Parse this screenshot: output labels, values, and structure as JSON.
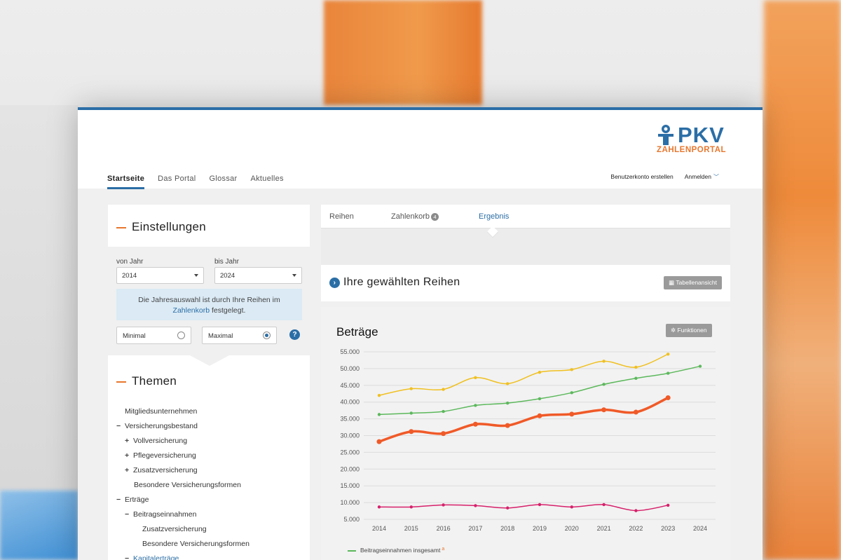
{
  "header": {
    "logo_top": "PKV",
    "logo_bottom": "ZAHLENPORTAL",
    "nav": [
      "Startseite",
      "Das Portal",
      "Glossar",
      "Aktuelles"
    ],
    "create_account": "Benutzerkonto erstellen",
    "login": "Anmelden"
  },
  "settings": {
    "title": "Einstellungen",
    "from_label": "von Jahr",
    "from_value": "2014",
    "to_label": "bis Jahr",
    "to_value": "2024",
    "info_text": "Die Jahresauswahl ist durch Ihre Reihen im",
    "info_link": "Zahlenkorb",
    "info_tail": "festgelegt.",
    "minimal_label": "Minimal",
    "maximal_label": "Maximal",
    "help": "?"
  },
  "themes": {
    "title": "Themen",
    "items": [
      {
        "label": "Mitgliedsunternehmen",
        "level": 0,
        "sign": ""
      },
      {
        "label": "Versicherungsbestand",
        "level": 0,
        "sign": "−"
      },
      {
        "label": "Vollversicherung",
        "level": 1,
        "sign": "+"
      },
      {
        "label": "Pflegeversicherung",
        "level": 1,
        "sign": "+"
      },
      {
        "label": "Zusatzversicherung",
        "level": 1,
        "sign": "+"
      },
      {
        "label": "Besondere Versicherungsformen",
        "level": 1,
        "sign": ""
      },
      {
        "label": "Erträge",
        "level": 0,
        "sign": "−"
      },
      {
        "label": "Beitragseinnahmen",
        "level": 1,
        "sign": "−"
      },
      {
        "label": "Zusatzversicherung",
        "level": 2,
        "sign": ""
      },
      {
        "label": "Besondere Versicherungsformen",
        "level": 2,
        "sign": ""
      },
      {
        "label": "Kapitalerträge",
        "level": 1,
        "sign": "−",
        "highlight": true
      }
    ]
  },
  "tabs": {
    "reihen": "Reihen",
    "zahlenkorb": "Zahlenkorb",
    "zahlenkorb_count": "4",
    "ergebnis": "Ergebnis"
  },
  "series": {
    "title": "Ihre gewählten Reihen",
    "table_button": "Tabellenansicht"
  },
  "chart_data": {
    "type": "line",
    "title": "Beträge",
    "functions_button": "Funktionen",
    "x": [
      "2014",
      "2015",
      "2016",
      "2017",
      "2018",
      "2019",
      "2020",
      "2021",
      "2022",
      "2023",
      "2024"
    ],
    "y_ticks": [
      "55.000",
      "50.000",
      "45.000",
      "40.000",
      "35.000",
      "30.000",
      "25.000",
      "20.000",
      "15.000",
      "10.000",
      "5.000"
    ],
    "ylim": [
      5000,
      55000
    ],
    "grid": true,
    "series": [
      {
        "color": "#f0c020",
        "width": 1.5,
        "values": [
          42000,
          44000,
          43800,
          47300,
          45500,
          48900,
          49700,
          52200,
          50400,
          54300,
          null
        ]
      },
      {
        "name": "Beitragseinnahmen insgesamt",
        "color": "#5cb85c",
        "width": 1.5,
        "values": [
          36300,
          36700,
          37200,
          39000,
          39700,
          41000,
          42800,
          45300,
          47100,
          48600,
          50700
        ]
      },
      {
        "color": "#f05a28",
        "width": 3.5,
        "values": [
          28200,
          31200,
          30600,
          33400,
          33000,
          35900,
          36400,
          37700,
          37000,
          41300,
          null
        ]
      },
      {
        "color": "#d6206a",
        "width": 1.5,
        "values": [
          8700,
          8700,
          9300,
          9100,
          8400,
          9400,
          8700,
          9400,
          7600,
          9200,
          null
        ]
      }
    ],
    "legend": "Beitragseinnahmen insgesamt",
    "legend_mark": "a"
  }
}
